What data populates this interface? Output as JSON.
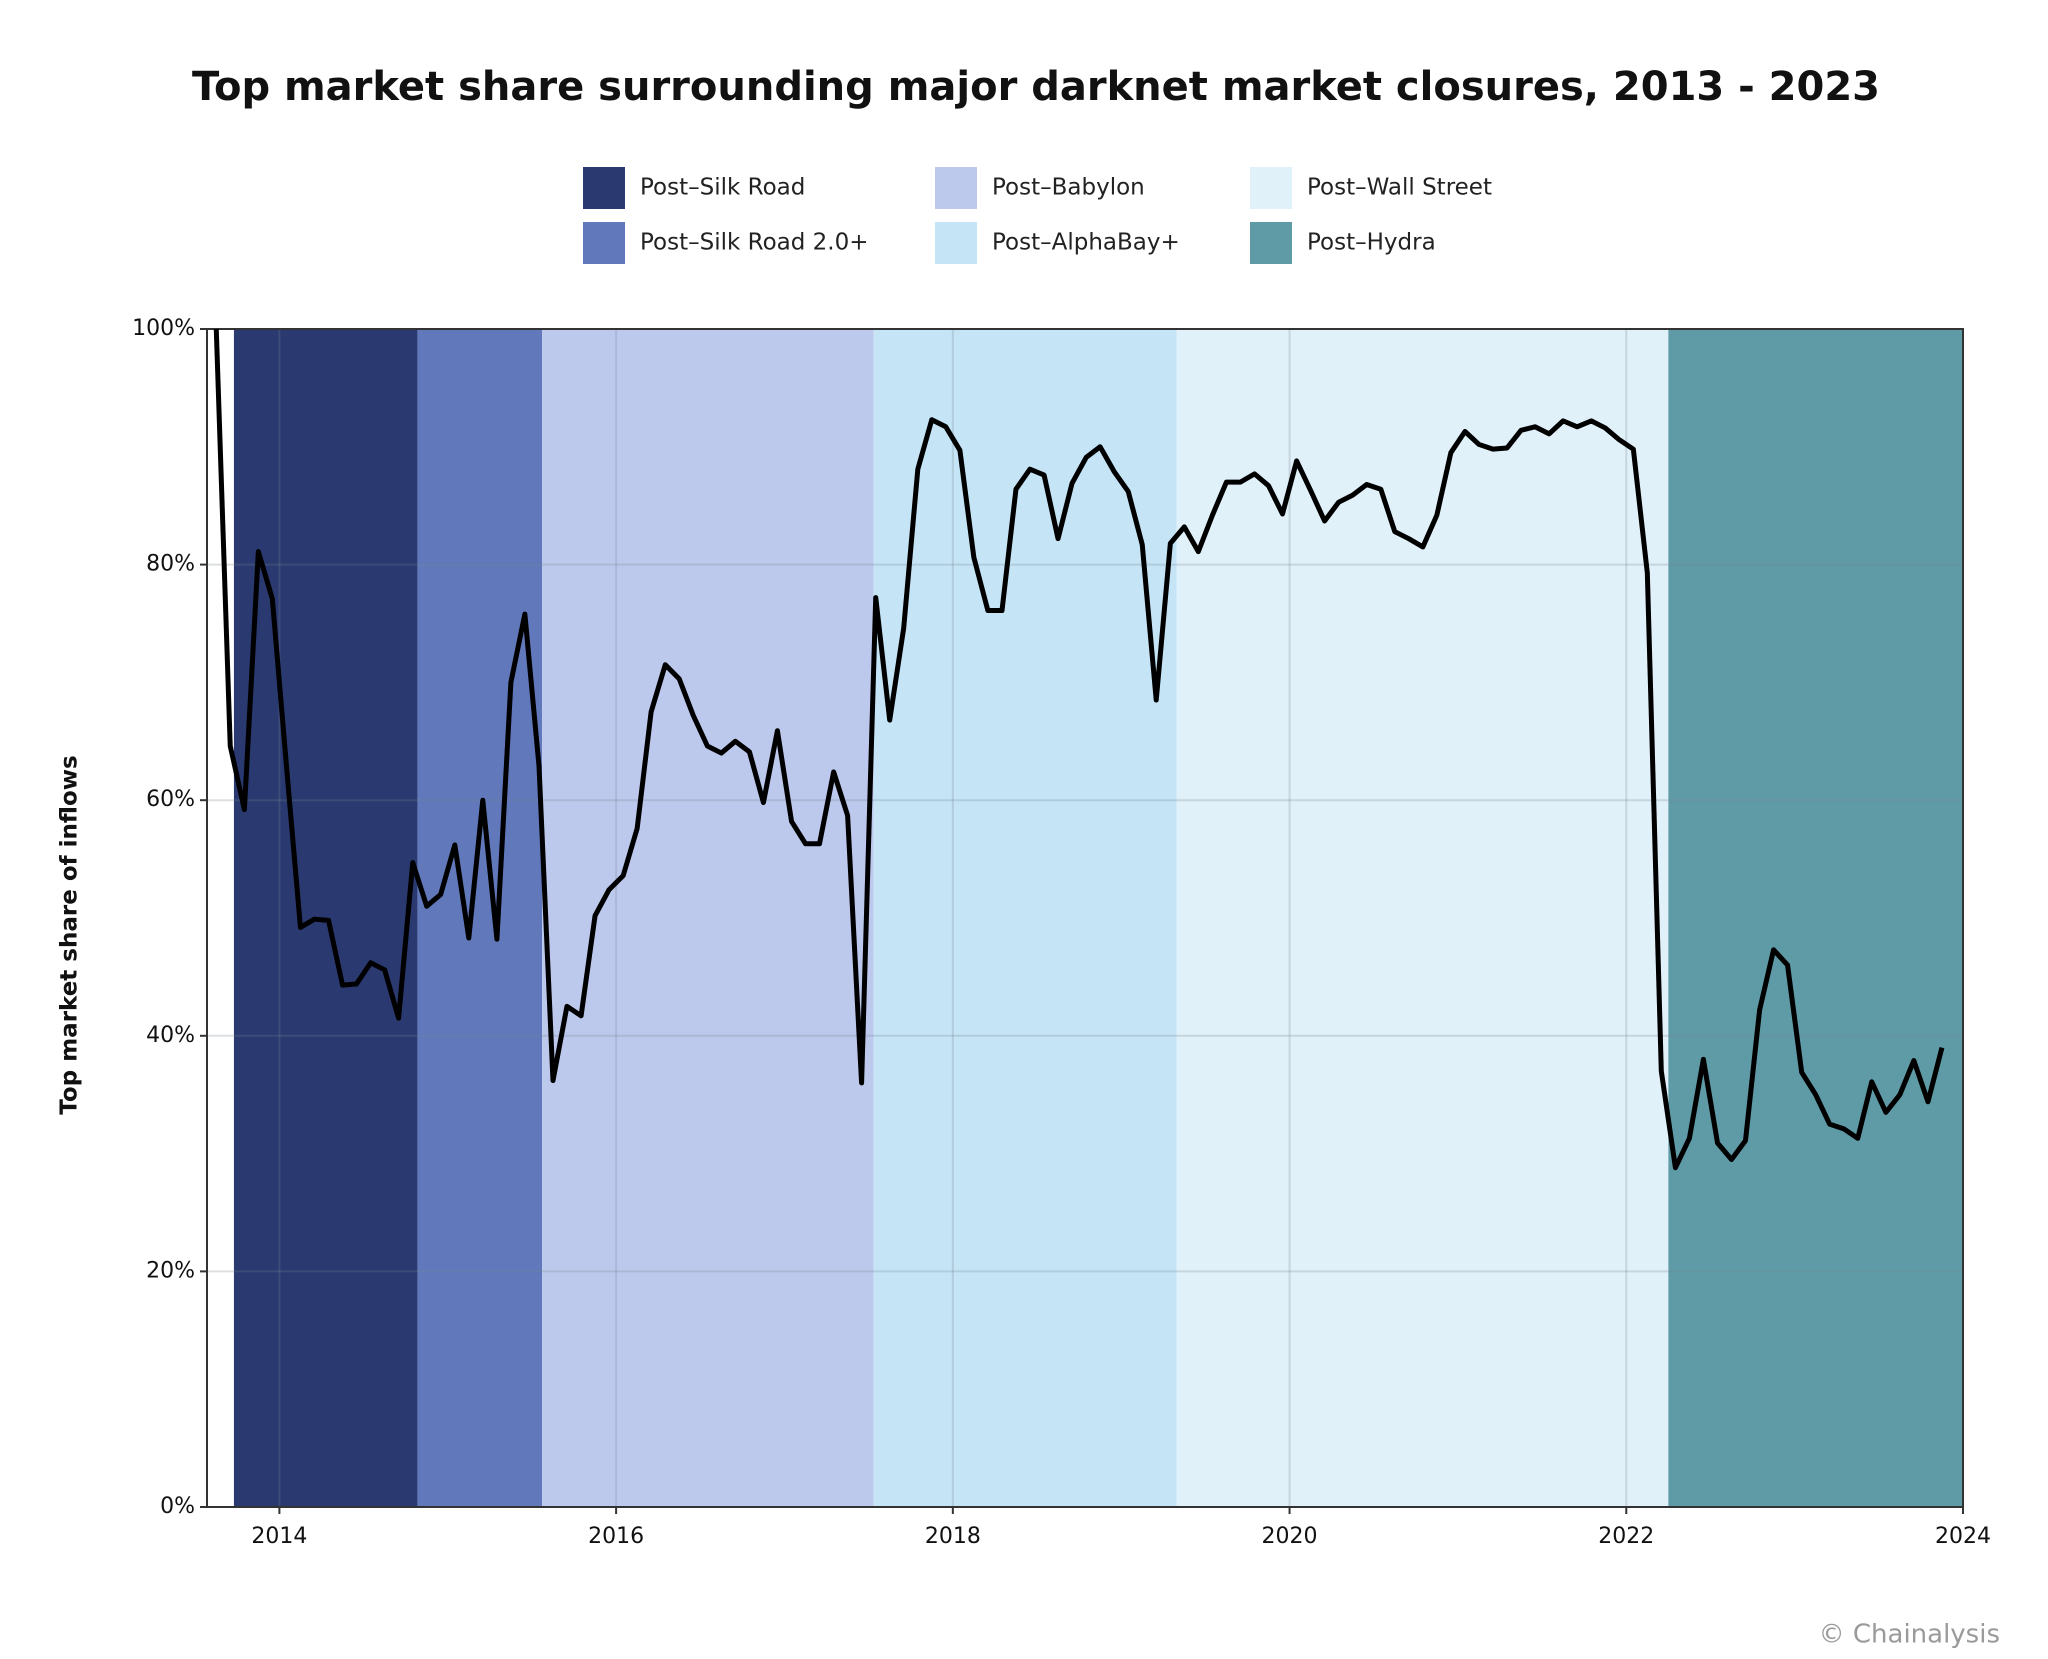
{
  "chart_data": {
    "type": "line",
    "title": "Top market share surrounding major darknet market closures, 2013 - 2023",
    "y_label": "Top market share of inflows",
    "credit": "© Chainalysis",
    "line_color": "#000000",
    "grid": true,
    "xlim": [
      2013.57,
      2024
    ],
    "xticks": [
      2014,
      2016,
      2018,
      2020,
      2022,
      2024
    ],
    "ylim": [
      0,
      100
    ],
    "yticks": [
      {
        "value": 0,
        "label": "0%"
      },
      {
        "value": 20,
        "label": "20%"
      },
      {
        "value": 40,
        "label": "40%"
      },
      {
        "value": 60,
        "label": "60%"
      },
      {
        "value": 80,
        "label": "80%"
      },
      {
        "value": 100,
        "label": "100%"
      }
    ],
    "regions": [
      {
        "name": "Post–Silk Road",
        "start": 2013.73,
        "end": 2014.82,
        "color": "#2a3970"
      },
      {
        "name": "Post–Silk Road 2.0+",
        "start": 2014.82,
        "end": 2015.56,
        "color": "#6178bb"
      },
      {
        "name": "Post–Babylon",
        "start": 2015.56,
        "end": 2017.53,
        "color": "#bcc9ed"
      },
      {
        "name": "Post–AlphaBay+",
        "start": 2017.53,
        "end": 2019.33,
        "color": "#c5e5f7"
      },
      {
        "name": "Post–Wall Street",
        "start": 2019.33,
        "end": 2022.25,
        "color": "#e1f1fa"
      },
      {
        "name": "Post–Hydra",
        "start": 2022.25,
        "end": 2024,
        "color": "#5f9ba7"
      }
    ],
    "x": [
      2013.625,
      2013.708,
      2013.792,
      2013.875,
      2013.958,
      2014.042,
      2014.125,
      2014.208,
      2014.292,
      2014.375,
      2014.458,
      2014.542,
      2014.625,
      2014.708,
      2014.792,
      2014.875,
      2014.958,
      2015.042,
      2015.125,
      2015.208,
      2015.292,
      2015.375,
      2015.458,
      2015.542,
      2015.625,
      2015.708,
      2015.792,
      2015.875,
      2015.958,
      2016.042,
      2016.125,
      2016.208,
      2016.292,
      2016.375,
      2016.458,
      2016.542,
      2016.625,
      2016.708,
      2016.792,
      2016.875,
      2016.958,
      2017.042,
      2017.125,
      2017.208,
      2017.292,
      2017.375,
      2017.458,
      2017.542,
      2017.625,
      2017.708,
      2017.792,
      2017.875,
      2017.958,
      2018.042,
      2018.125,
      2018.208,
      2018.292,
      2018.375,
      2018.458,
      2018.542,
      2018.625,
      2018.708,
      2018.792,
      2018.875,
      2018.958,
      2019.042,
      2019.125,
      2019.208,
      2019.292,
      2019.375,
      2019.458,
      2019.542,
      2019.625,
      2019.708,
      2019.792,
      2019.875,
      2019.958,
      2020.042,
      2020.125,
      2020.208,
      2020.292,
      2020.375,
      2020.458,
      2020.542,
      2020.625,
      2020.708,
      2020.792,
      2020.875,
      2020.958,
      2021.042,
      2021.125,
      2021.208,
      2021.292,
      2021.375,
      2021.458,
      2021.542,
      2021.625,
      2021.708,
      2021.792,
      2021.875,
      2021.958,
      2022.042,
      2022.125,
      2022.208,
      2022.292,
      2022.375,
      2022.458,
      2022.542,
      2022.625,
      2022.708,
      2022.792,
      2022.875,
      2022.958,
      2023.042,
      2023.125,
      2023.208,
      2023.292,
      2023.375,
      2023.458,
      2023.542,
      2023.625,
      2023.708,
      2023.792,
      2023.875
    ],
    "values": [
      100,
      64.6,
      59.2,
      81.1,
      77.1,
      62.9,
      49.2,
      49.9,
      49.8,
      44.3,
      44.4,
      46.2,
      45.6,
      41.5,
      54.7,
      51.0,
      52.0,
      56.2,
      48.3,
      60.0,
      48.2,
      70.0,
      75.8,
      62.9,
      36.2,
      42.5,
      41.7,
      50.2,
      52.4,
      53.6,
      57.6,
      67.5,
      71.5,
      70.3,
      67.2,
      64.6,
      64.0,
      65.0,
      64.1,
      59.8,
      65.9,
      58.2,
      56.3,
      56.3,
      62.4,
      58.7,
      36.0,
      77.2,
      66.8,
      74.6,
      88.1,
      92.3,
      91.7,
      89.7,
      80.6,
      76.1,
      76.1,
      86.4,
      88.1,
      87.6,
      82.2,
      86.9,
      89.1,
      90.0,
      87.9,
      86.2,
      81.7,
      68.5,
      81.8,
      83.2,
      81.1,
      84.2,
      87.0,
      87.0,
      87.7,
      86.7,
      84.3,
      88.8,
      86.3,
      83.7,
      85.3,
      85.9,
      86.8,
      86.4,
      82.8,
      82.2,
      81.5,
      84.2,
      89.5,
      91.3,
      90.2,
      89.8,
      89.9,
      91.4,
      91.7,
      91.1,
      92.2,
      91.7,
      92.2,
      91.6,
      90.6,
      89.8,
      79.3,
      37.0,
      28.8,
      31.3,
      38.0,
      30.9,
      29.5,
      31.1,
      42.2,
      47.3,
      46.0,
      36.9,
      35.0,
      32.5,
      32.1,
      31.3,
      36.1,
      33.5,
      35.0,
      37.9,
      34.4,
      39.0
    ]
  }
}
